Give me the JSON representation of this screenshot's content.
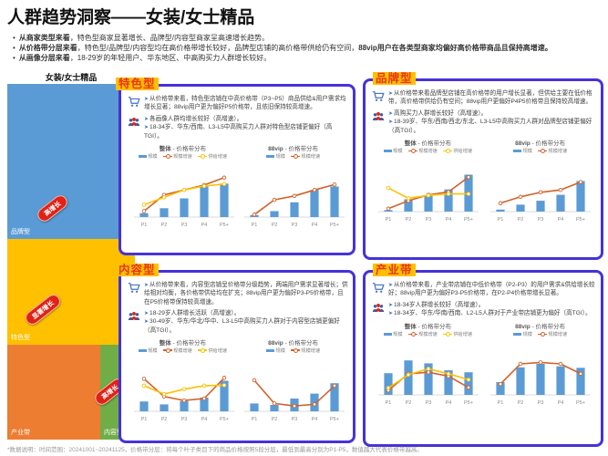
{
  "page": {
    "title": "人群趋势洞察——女装/女士精品",
    "bullets": [
      {
        "lead": "从商家类型来看",
        "mid": "，特色型商家显著增长、品牌型/内容型商家呈高速增长趋势。",
        "tail": ""
      },
      {
        "lead": "从价格带分层来看",
        "mid": "，特色型/品牌型/内容型均在高价格带增长较好，品牌型店铺的高价格带供给仍有空间，",
        "tail": "88vip用户在各类型商家均偏好高价格带商品且保持高增速。"
      },
      {
        "lead": "从画像分层来看",
        "mid": "，18-29岁的年轻用户、华东地区、中高购买力人群增长较好。",
        "tail": ""
      }
    ],
    "footnote": "*数据说明：时间范围：20241001~20241125，价格带分层：将每个叶子类目下的商品价格按照5段分层，最低到最高分别为P1-P5，数值越大代表价格带越高。"
  },
  "treemap": {
    "title": "女装/女士精品",
    "blocks": [
      {
        "label": "品牌型",
        "badge": "高增长",
        "color": "#5B9BD5"
      },
      {
        "label": "特色型",
        "badge": "显著增长",
        "color": "#FFC000"
      },
      {
        "label": "产业带",
        "badge": "",
        "color": "#ED7D31"
      },
      {
        "label": "内容型",
        "badge": "高增长",
        "color": "#70AD47"
      }
    ]
  },
  "panels": [
    {
      "title": "特色型",
      "price_text": "从价格带来看，特色型店铺在中高价格带（P3~P5）商品供给&用户需求均增长显著；88vip用户更为偏好P5价格带，且依旧保持较高增速。",
      "crowd": [
        "各画像人群均增长较好（高增速）。",
        "18-34岁、华东/西南、L3-L5中高购买力人群对特色型店铺更偏好（高TGI）。"
      ]
    },
    {
      "title": "品牌型",
      "price_text": "从价格带来看品牌型店铺在高价格带的用户增长显著，但供给主要在低价格带，高价格带供给仍有空间；88vip用户更偏好P4P5价格带且保持较高增速。",
      "crowd": [
        "高购买力人群增长较好（高增速）。",
        "18-39岁、华东/西南/西北/东北、L3-L5中高购买力人群对品牌型店铺更偏好（高TGI）。"
      ]
    },
    {
      "title": "内容型",
      "price_text": "从价格带来看，内容型店铺呈价格带分级趋势，两端用户需求显著增长；供给相对均衡，各价格带供给均在扩充；88vip用户更为偏好P3-P5价格带，且在P5价格带保持较高增速。",
      "crowd": [
        "18-29岁人群增长活跃（高增速）。",
        "30-49岁、华东/华北/华中、L3-L5中高购买力人群对于内容型店铺更偏好（高TGI）。"
      ]
    },
    {
      "title": "产业带",
      "price_text": "从价格带来看，产业带店铺在中低价格带（P2-P3）的用户需求&供给增长较好；88vip用户更为偏好P3-P5价格带，在P2-P4价格带增长显著。",
      "crowd": [
        "18-34岁人群增长较好（高增速）。",
        "18-34岁、华东/华南/西南、L2-L5人群对于产业带店铺更为偏好（高TGI）。"
      ]
    }
  ],
  "chart_data": [
    {
      "type": "bar",
      "panel": "特色型",
      "title": "整体 - 价格带分布",
      "categories": [
        "P1",
        "P2",
        "P3",
        "P4",
        "P5+"
      ],
      "ylim": [
        0,
        100
      ],
      "bars": {
        "name": "规模",
        "color": "#5B9BD5",
        "values": [
          8,
          18,
          38,
          62,
          68
        ]
      },
      "lines": [
        {
          "name": "规模增速",
          "color": "#D2622A",
          "values": [
            12,
            45,
            55,
            65,
            80
          ]
        },
        {
          "name": "供给增速",
          "color": "#FFC000",
          "values": [
            25,
            40,
            55,
            63,
            67
          ]
        }
      ]
    },
    {
      "type": "bar",
      "panel": "特色型",
      "title": "88vip - 价格带分布",
      "categories": [
        "P1",
        "P2",
        "P3",
        "P4",
        "P5+"
      ],
      "ylim": [
        0,
        100
      ],
      "bars": {
        "name": "规模",
        "color": "#5B9BD5",
        "values": [
          4,
          12,
          30,
          55,
          62
        ]
      },
      "lines": [
        {
          "name": "规模增速",
          "color": "#D2622A",
          "values": [
            5,
            35,
            43,
            55,
            66
          ]
        }
      ]
    },
    {
      "type": "bar",
      "panel": "品牌型",
      "title": "整体 - 价格带分布",
      "categories": [
        "P1",
        "P2",
        "P3",
        "P4",
        "P5+"
      ],
      "ylim": [
        0,
        100
      ],
      "bars": {
        "name": "规模",
        "color": "#5B9BD5",
        "values": [
          3,
          25,
          32,
          45,
          75
        ]
      },
      "lines": [
        {
          "name": "规模增速",
          "color": "#D2622A",
          "values": [
            6,
            22,
            34,
            40,
            70
          ]
        },
        {
          "name": "供给增速",
          "color": "#FFC000",
          "values": [
            48,
            27,
            33,
            36,
            36
          ]
        }
      ]
    },
    {
      "type": "bar",
      "panel": "品牌型",
      "title": "88vip - 价格带分布",
      "categories": [
        "P1",
        "P2",
        "P3",
        "P4",
        "P5+"
      ],
      "ylim": [
        0,
        100
      ],
      "bars": {
        "name": "规模",
        "color": "#5B9BD5",
        "values": [
          4,
          14,
          22,
          34,
          62
        ]
      },
      "lines": [
        {
          "name": "规模增速",
          "color": "#D2622A",
          "values": [
            17,
            30,
            39,
            44,
            60
          ]
        }
      ]
    },
    {
      "type": "bar",
      "panel": "内容型",
      "title": "整体 - 价格带分布",
      "categories": [
        "P1",
        "P2",
        "P3",
        "P4",
        "P5+"
      ],
      "ylim": [
        0,
        100
      ],
      "bars": {
        "name": "规模",
        "color": "#5B9BD5",
        "values": [
          20,
          14,
          21,
          28,
          62
        ]
      },
      "lines": [
        {
          "name": "规模增速",
          "color": "#D2622A",
          "values": [
            66,
            30,
            22,
            26,
            68
          ]
        },
        {
          "name": "供给增速",
          "color": "#FFC000",
          "values": [
            52,
            35,
            45,
            52,
            53
          ]
        }
      ]
    },
    {
      "type": "bar",
      "panel": "内容型",
      "title": "88vip - 价格带分布",
      "categories": [
        "P1",
        "P2",
        "P3",
        "P4",
        "P5+"
      ],
      "ylim": [
        0,
        100
      ],
      "bars": {
        "name": "规模",
        "color": "#5B9BD5",
        "values": [
          16,
          13,
          26,
          36,
          57
        ]
      },
      "lines": [
        {
          "name": "规模增速",
          "color": "#D2622A",
          "values": [
            63,
            16,
            11,
            14,
            52
          ]
        }
      ]
    },
    {
      "type": "bar",
      "panel": "产业带",
      "title": "整体 - 价格带分布",
      "categories": [
        "P1",
        "P2",
        "P3",
        "P4",
        "P5+"
      ],
      "ylim": [
        0,
        100
      ],
      "bars": {
        "name": "规模",
        "color": "#5B9BD5",
        "values": [
          44,
          70,
          64,
          50,
          46
        ]
      },
      "lines": [
        {
          "name": "规模增速",
          "color": "#D2622A",
          "values": [
            9,
            43,
            46,
            38,
            15
          ]
        },
        {
          "name": "供给增速",
          "color": "#FFC000",
          "values": [
            14,
            41,
            53,
            43,
            31
          ]
        }
      ]
    },
    {
      "type": "bar",
      "panel": "产业带",
      "title": "88vip - 价格带分布",
      "categories": [
        "P1",
        "P2",
        "P3",
        "P4",
        "P5+"
      ],
      "ylim": [
        0,
        100
      ],
      "bars": {
        "name": "规模",
        "color": "#5B9BD5",
        "values": [
          26,
          56,
          63,
          58,
          55
        ]
      },
      "lines": [
        {
          "name": "规模增速",
          "color": "#D2622A",
          "values": [
            22,
            63,
            66,
            63,
            43
          ]
        }
      ]
    }
  ]
}
